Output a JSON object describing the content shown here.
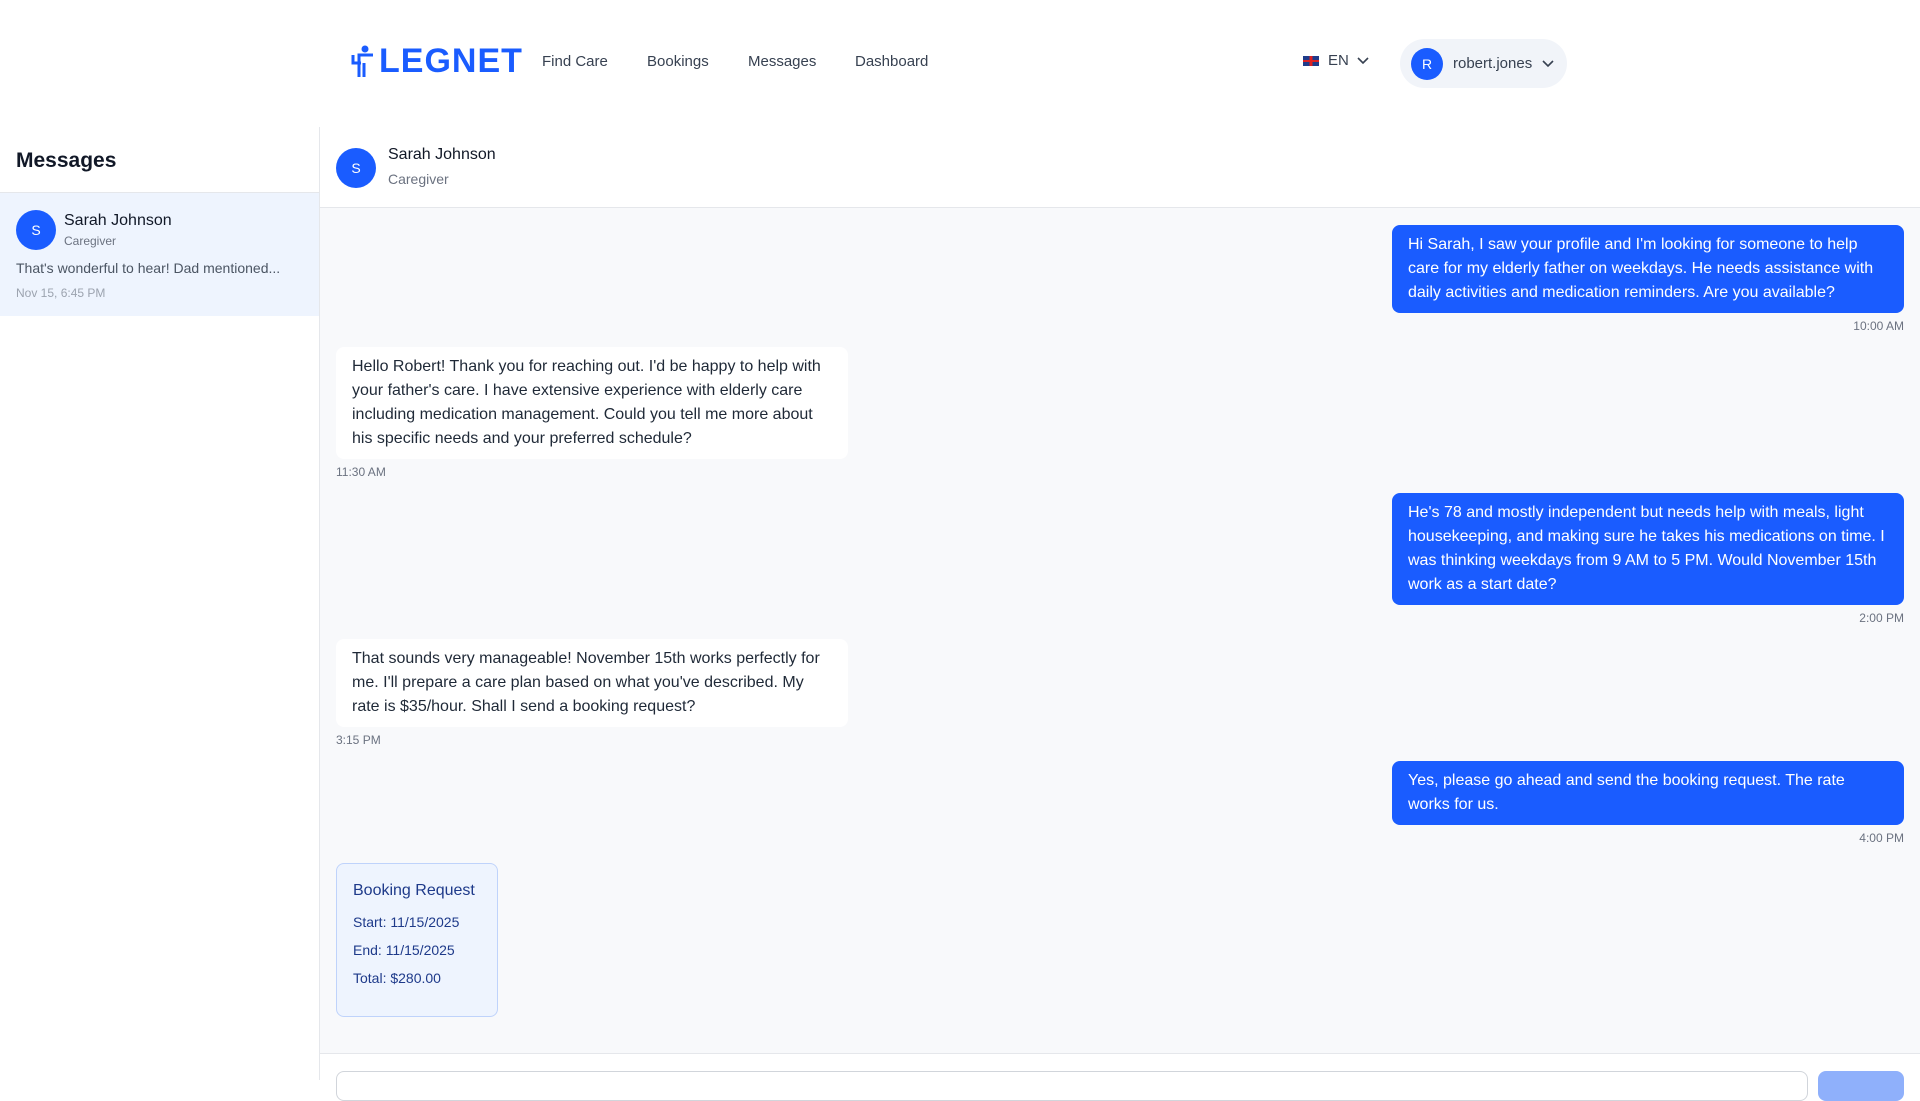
{
  "brand": {
    "name": "LEGNET",
    "color": "#1a5cff"
  },
  "nav": [
    "Find Care",
    "Bookings",
    "Messages",
    "Dashboard"
  ],
  "language": "EN",
  "user": {
    "initial": "R",
    "name": "robert.jones"
  },
  "sidebar": {
    "title": "Messages",
    "conversations": [
      {
        "initial": "S",
        "name": "Sarah Johnson",
        "role": "Caregiver",
        "preview": "That's wonderful to hear! Dad mentioned...",
        "time": "Nov 15, 6:45 PM"
      }
    ]
  },
  "chat": {
    "initial": "S",
    "name": "Sarah Johnson",
    "role": "Caregiver",
    "messages": [
      {
        "dir": "sent",
        "text": "Hi Sarah, I saw your profile and I'm looking for someone to help care for my elderly father on weekdays. He needs assistance with daily activities and medication reminders. Are you available?",
        "time": "10:00 AM"
      },
      {
        "dir": "recv",
        "text": "Hello Robert! Thank you for reaching out. I'd be happy to help with your father's care. I have extensive experience with elderly care including medication management. Could you tell me more about his specific needs and your preferred schedule?",
        "time": "11:30 AM"
      },
      {
        "dir": "sent",
        "text": "He's 78 and mostly independent but needs help with meals, light housekeeping, and making sure he takes his medications on time. I was thinking weekdays from 9 AM to 5 PM. Would November 15th work as a start date?",
        "time": "2:00 PM"
      },
      {
        "dir": "recv",
        "text": "That sounds very manageable! November 15th works perfectly for me. I'll prepare a care plan based on what you've described. My rate is $35/hour. Shall I send a booking request?",
        "time": "3:15 PM"
      },
      {
        "dir": "sent",
        "text": "Yes, please go ahead and send the booking request. The rate works for us.",
        "time": "4:00 PM"
      }
    ],
    "booking": {
      "title": "Booking Request",
      "start": "Start: 11/15/2025",
      "end": "End: 11/15/2025",
      "total": "Total: $280.00"
    }
  }
}
